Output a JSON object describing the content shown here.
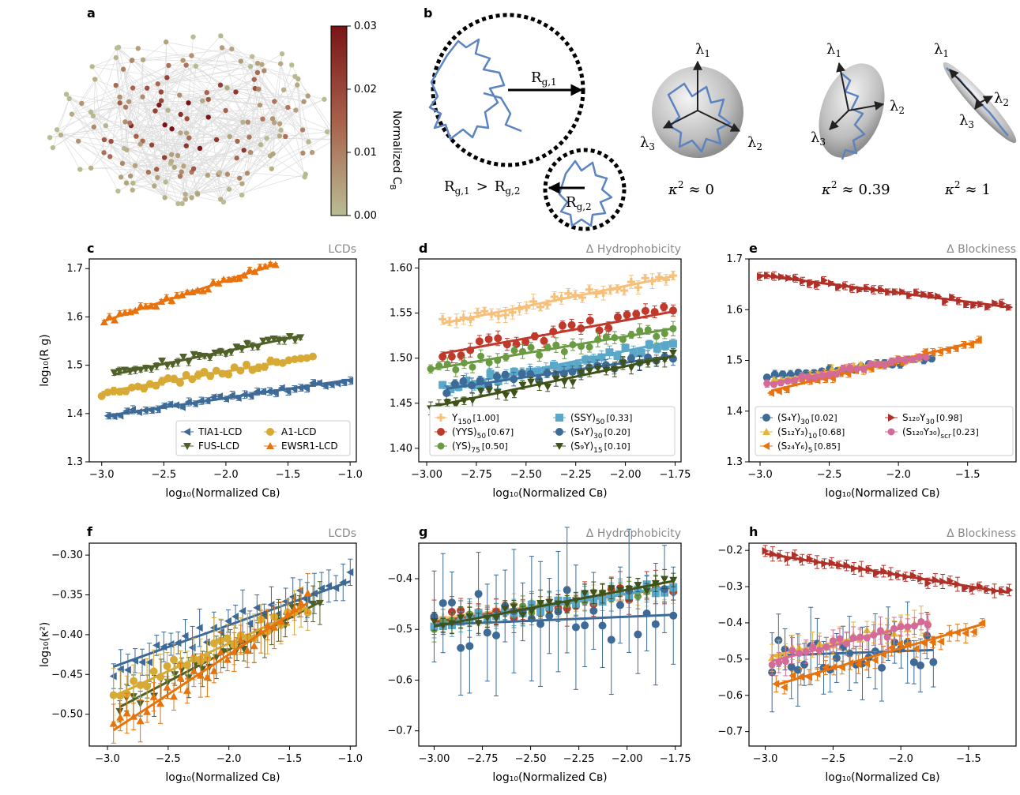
{
  "colors": {
    "blue": "#3d6a96",
    "olive": "#4f6128",
    "gold": "#d7aa35",
    "orange": "#e8720c",
    "peach": "#f6c07a",
    "red": "#c0392b",
    "green": "#6a9a42",
    "cyan": "#5aa8c9",
    "darkolive": "#3f5219",
    "darkred": "#b03028",
    "pink": "#d46a97",
    "amber": "#e5b53d",
    "network_node": "#b9bd94",
    "network_edge": "#dddddd",
    "chain": "#5b84c0"
  },
  "panel_a": {
    "letter": "a",
    "colorbar": {
      "label": "Normalized Cʙ",
      "label_main": "Normalized C",
      "label_sub": "B",
      "ticks": [
        "0.00",
        "0.01",
        "0.02",
        "0.03"
      ],
      "min": 0,
      "max": 0.03
    }
  },
  "panel_b": {
    "letter": "b",
    "comparison": "R g,1 > R g,2",
    "rg1": "R",
    "rg1_sub": "g,1",
    "rg2": "R",
    "rg2_sub": "g,2",
    "rel_lhs": "R",
    "rel_lhs_sub": "g,1",
    "rel_op": ">",
    "rel_rhs": "R",
    "rel_rhs_sub": "g,2",
    "lambda": "λ",
    "l1": "1",
    "l2": "2",
    "l3": "3",
    "kappa": "κ",
    "kappa_sup": "2",
    "approx": "≈",
    "kappa_values": [
      "0",
      "0.39",
      "1"
    ]
  },
  "chart_data": [
    {
      "panel": "c",
      "type": "scatter",
      "tag": "LCDs",
      "xlabel": "log₁₀(Normalized Cʙ)",
      "ylabel": "log₁₀(R g)",
      "xlim": [
        -3.1,
        -0.95
      ],
      "ylim": [
        1.3,
        1.72
      ],
      "xticks": [
        -3.0,
        -2.5,
        -2.0,
        -1.5,
        -1.0
      ],
      "yticks": [
        1.3,
        1.4,
        1.5,
        1.6,
        1.7
      ],
      "legend": {
        "cols": 2,
        "placement": "bottom-right"
      },
      "series": [
        {
          "name": "TIA1-LCD",
          "color": "blue",
          "marker": "tri-left",
          "x0": -2.95,
          "x1": -1.0,
          "n": 40,
          "slope": 0.038,
          "intercept": 1.508,
          "noise": 0.006,
          "err": 0.006
        },
        {
          "name": "FUS-LCD",
          "color": "olive",
          "marker": "tri-down",
          "x0": -2.9,
          "x1": -1.4,
          "n": 36,
          "slope": 0.053,
          "intercept": 1.635,
          "noise": 0.008,
          "err": 0.006
        },
        {
          "name": "A1-LCD",
          "color": "gold",
          "marker": "circle",
          "x0": -3.0,
          "x1": -1.3,
          "n": 36,
          "slope": 0.043,
          "intercept": 1.573,
          "noise": 0.008,
          "err": 0.006
        },
        {
          "name": "EWSR1-LCD",
          "color": "orange",
          "marker": "tri-up",
          "x0": -2.98,
          "x1": -1.6,
          "n": 34,
          "slope": 0.085,
          "intercept": 1.845,
          "noise": 0.006,
          "err": 0.005
        }
      ]
    },
    {
      "panel": "d",
      "type": "scatter",
      "tag": "Δ Hydrophobicity",
      "xlabel": "log₁₀(Normalized Cʙ)",
      "ylabel": "",
      "xlim": [
        -3.04,
        -1.72
      ],
      "ylim": [
        1.385,
        1.61
      ],
      "xticks": [
        -3.0,
        -2.75,
        -2.5,
        -2.25,
        -2.0,
        -1.75
      ],
      "yticks": [
        1.4,
        1.45,
        1.5,
        1.55,
        1.6
      ],
      "legend": {
        "cols": 2,
        "placement": "bottom-right"
      },
      "series": [
        {
          "name": "Y",
          "sub": "150",
          "tag": "[1.00]",
          "color": "peach",
          "marker": "plus",
          "x0": -2.92,
          "x1": -1.76,
          "n": 34,
          "slope": 0.045,
          "intercept": 1.67,
          "noise": 0.005,
          "err": 0.006
        },
        {
          "name": "(YYS)",
          "sub": "50",
          "tag": "[0.67]",
          "color": "red",
          "marker": "circle",
          "x0": -2.92,
          "x1": -1.76,
          "n": 26,
          "slope": 0.04,
          "intercept": 1.622,
          "noise": 0.007,
          "err": 0.006
        },
        {
          "name": "(YS)",
          "sub": "75",
          "tag": "[0.50]",
          "color": "green",
          "marker": "hexagon",
          "x0": -2.98,
          "x1": -1.76,
          "n": 30,
          "slope": 0.037,
          "intercept": 1.598,
          "noise": 0.006,
          "err": 0.006
        },
        {
          "name": "(SSY)",
          "sub": "50",
          "tag": "[0.33]",
          "color": "cyan",
          "marker": "square",
          "x0": -2.92,
          "x1": -1.76,
          "n": 30,
          "slope": 0.045,
          "intercept": 1.598,
          "noise": 0.006,
          "err": 0.006
        },
        {
          "name": "(S₄Y)",
          "sub": "30",
          "tag": "[0.20]",
          "color": "blue",
          "marker": "circle",
          "x0": -2.9,
          "x1": -1.76,
          "n": 28,
          "slope": 0.032,
          "intercept": 1.559,
          "noise": 0.006,
          "err": 0.006
        },
        {
          "name": "(S₉Y)",
          "sub": "15",
          "tag": "[0.10]",
          "color": "darkolive",
          "marker": "tri-down",
          "x0": -2.98,
          "x1": -1.76,
          "n": 30,
          "slope": 0.046,
          "intercept": 1.583,
          "noise": 0.006,
          "err": 0.006
        }
      ]
    },
    {
      "panel": "e",
      "type": "scatter",
      "tag": "Δ Blockiness",
      "xlabel": "log₁₀(Normalized Cʙ)",
      "ylabel": "",
      "xlim": [
        -3.08,
        -1.15
      ],
      "ylim": [
        1.3,
        1.7
      ],
      "xticks": [
        -3.0,
        -2.5,
        -2.0,
        -1.5
      ],
      "yticks": [
        1.3,
        1.4,
        1.5,
        1.6,
        1.7
      ],
      "legend": {
        "cols": 2,
        "placement": "bottom-left"
      },
      "series": [
        {
          "name": "(S₄Y)",
          "sub": "30",
          "tag": "[0.02]",
          "color": "blue",
          "marker": "circle",
          "x0": -2.95,
          "x1": -1.76,
          "n": 22,
          "slope": 0.03,
          "intercept": 1.555,
          "noise": 0.005,
          "err": 0.006
        },
        {
          "name": "(S₁₂Y₃)",
          "sub": "10",
          "tag": "[0.68]",
          "color": "amber",
          "marker": "tri-up",
          "x0": -2.9,
          "x1": -1.8,
          "n": 22,
          "slope": 0.045,
          "intercept": 1.59,
          "noise": 0.005,
          "err": 0.006
        },
        {
          "name": "(S₂₄Y₆)",
          "sub": "5",
          "tag": "[0.85]",
          "color": "orange",
          "marker": "tri-left",
          "x0": -2.92,
          "x1": -1.42,
          "n": 28,
          "slope": 0.065,
          "intercept": 1.63,
          "noise": 0.005,
          "err": 0.006
        },
        {
          "name": "S₁₂₀Y",
          "sub": "30",
          "tag": "[0.98]",
          "color": "darkred",
          "marker": "tri-right",
          "x0": -3.0,
          "x1": -1.2,
          "n": 36,
          "slope": -0.035,
          "intercept": 1.563,
          "noise": 0.007,
          "err": 0.006
        },
        {
          "name": "(S₁₂₀Y₃₀)",
          "sub": "scr",
          "tag": "[0.23]",
          "color": "pink",
          "marker": "hexagon",
          "x0": -2.95,
          "x1": -1.8,
          "n": 24,
          "slope": 0.048,
          "intercept": 1.595,
          "noise": 0.005,
          "err": 0.006
        }
      ]
    },
    {
      "panel": "f",
      "type": "scatter",
      "tag": "LCDs",
      "xlabel": "log₁₀(Normalized Cʙ)",
      "ylabel": "log₁₀(κ²)",
      "xlim": [
        -3.15,
        -0.95
      ],
      "ylim": [
        -0.54,
        -0.285
      ],
      "xticks": [
        -3.0,
        -2.5,
        -2.0,
        -1.5,
        -1.0
      ],
      "yticks": [
        -0.5,
        -0.45,
        -0.4,
        -0.35,
        -0.3
      ],
      "series": [
        {
          "name": "TIA1-LCD",
          "color": "blue",
          "marker": "tri-left",
          "x0": -2.95,
          "x1": -1.0,
          "n": 34,
          "slope": 0.055,
          "intercept": -0.278,
          "noise": 0.012,
          "err": 0.02
        },
        {
          "name": "FUS-LCD",
          "color": "olive",
          "marker": "tri-down",
          "x0": -2.9,
          "x1": -1.25,
          "n": 30,
          "slope": 0.08,
          "intercept": -0.259,
          "noise": 0.012,
          "err": 0.02
        },
        {
          "name": "A1-LCD",
          "color": "gold",
          "marker": "circle",
          "x0": -2.95,
          "x1": -1.35,
          "n": 30,
          "slope": 0.07,
          "intercept": -0.271,
          "noise": 0.012,
          "err": 0.025
        },
        {
          "name": "EWSR1-LCD",
          "color": "orange",
          "marker": "tri-up",
          "x0": -2.95,
          "x1": -1.35,
          "n": 30,
          "slope": 0.1,
          "intercept": -0.225,
          "noise": 0.012,
          "err": 0.02
        }
      ]
    },
    {
      "panel": "g",
      "type": "scatter",
      "tag": "Δ Hydrophobicity",
      "xlabel": "log₁₀(Normalized Cʙ)",
      "ylabel": "",
      "xlim": [
        -3.08,
        -1.72
      ],
      "ylim": [
        -0.73,
        -0.33
      ],
      "xticks": [
        -3.0,
        -2.75,
        -2.5,
        -2.25,
        -2.0,
        -1.75
      ],
      "yticks": [
        -0.7,
        -0.6,
        -0.5,
        -0.4
      ],
      "series": [
        {
          "name": "Y150",
          "color": "peach",
          "marker": "plus",
          "x0": -3.0,
          "x1": -1.76,
          "n": 28,
          "slope": 0.05,
          "intercept": -0.33,
          "noise": 0.012,
          "err": 0.02
        },
        {
          "name": "(YYS)50",
          "color": "red",
          "marker": "circle",
          "x0": -3.0,
          "x1": -1.76,
          "n": 28,
          "slope": 0.055,
          "intercept": -0.32,
          "noise": 0.015,
          "err": 0.025
        },
        {
          "name": "(YS)75",
          "color": "green",
          "marker": "hexagon",
          "x0": -3.0,
          "x1": -1.76,
          "n": 28,
          "slope": 0.06,
          "intercept": -0.31,
          "noise": 0.012,
          "err": 0.02
        },
        {
          "name": "(SSY)50",
          "color": "cyan",
          "marker": "square",
          "x0": -3.0,
          "x1": -1.76,
          "n": 28,
          "slope": 0.062,
          "intercept": -0.305,
          "noise": 0.012,
          "err": 0.02
        },
        {
          "name": "(S4Y)30",
          "color": "blue",
          "marker": "circle",
          "x0": -3.0,
          "x1": -1.76,
          "n": 28,
          "slope": 0.016,
          "intercept": -0.443,
          "noise": 0.06,
          "err": 0.09
        },
        {
          "name": "(S9Y)15",
          "color": "darkolive",
          "marker": "tri-down",
          "x0": -3.0,
          "x1": -1.76,
          "n": 28,
          "slope": 0.072,
          "intercept": -0.278,
          "noise": 0.012,
          "err": 0.02
        }
      ]
    },
    {
      "panel": "h",
      "type": "scatter",
      "tag": "Δ Blockiness",
      "xlabel": "log₁₀(Normalized Cʙ)",
      "ylabel": "",
      "xlim": [
        -3.12,
        -1.15
      ],
      "ylim": [
        -0.74,
        -0.18
      ],
      "xticks": [
        -3.0,
        -2.5,
        -2.0,
        -1.5
      ],
      "yticks": [
        -0.7,
        -0.6,
        -0.5,
        -0.4,
        -0.3,
        -0.2
      ],
      "series": [
        {
          "name": "(S4Y)30",
          "color": "blue",
          "marker": "circle",
          "x0": -2.95,
          "x1": -1.76,
          "n": 26,
          "slope": 0.013,
          "intercept": -0.452,
          "noise": 0.05,
          "err": 0.08
        },
        {
          "name": "(S12Y3)10",
          "color": "amber",
          "marker": "tri-up",
          "x0": -2.95,
          "x1": -1.8,
          "n": 24,
          "slope": 0.08,
          "intercept": -0.255,
          "noise": 0.015,
          "err": 0.03
        },
        {
          "name": "(S24Y6)5",
          "color": "orange",
          "marker": "tri-left",
          "x0": -2.92,
          "x1": -1.4,
          "n": 26,
          "slope": 0.11,
          "intercept": -0.25,
          "noise": 0.015,
          "err": 0.02
        },
        {
          "name": "S120Y30",
          "color": "darkred",
          "marker": "tri-right",
          "x0": -3.0,
          "x1": -1.2,
          "n": 34,
          "slope": -0.06,
          "intercept": -0.389,
          "noise": 0.01,
          "err": 0.015
        },
        {
          "name": "(S120Y30)scr",
          "color": "pink",
          "marker": "hexagon",
          "x0": -2.95,
          "x1": -1.8,
          "n": 24,
          "slope": 0.095,
          "intercept": -0.225,
          "noise": 0.015,
          "err": 0.03
        }
      ]
    }
  ]
}
